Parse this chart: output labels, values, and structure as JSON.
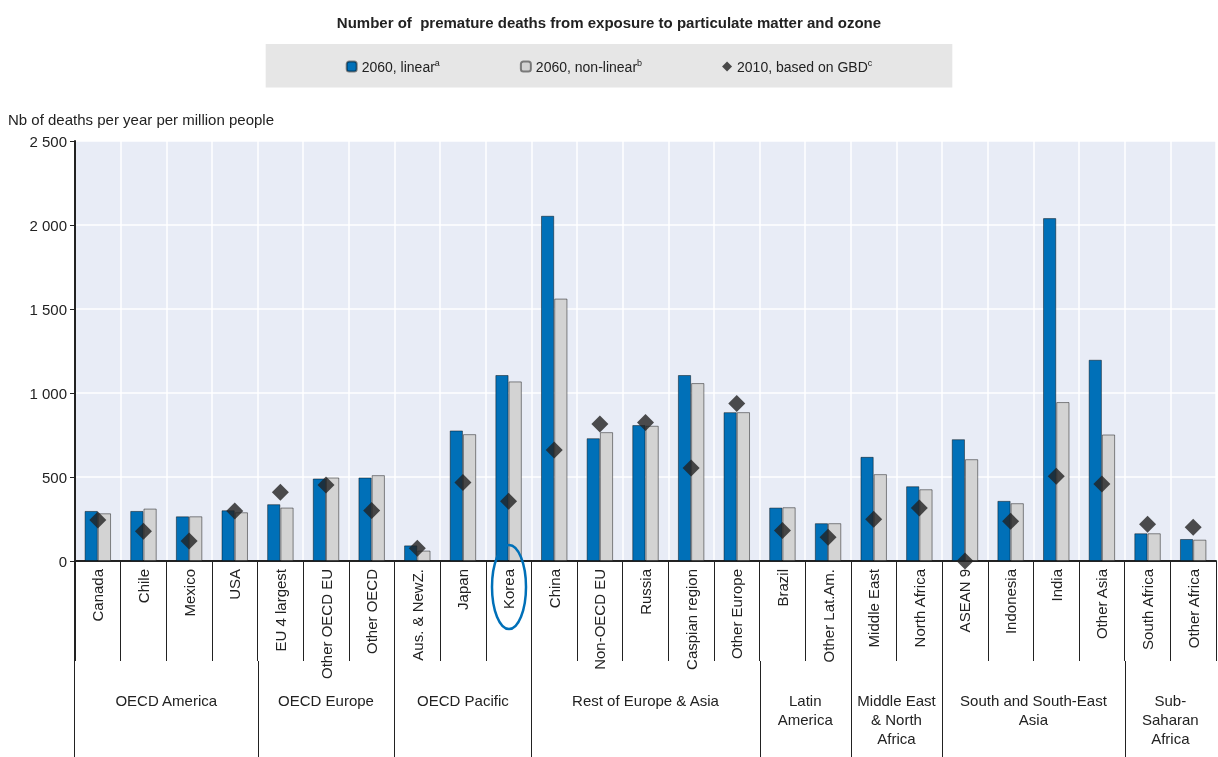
{
  "chart_data": {
    "type": "bar",
    "title": "Number of  premature deaths from exposure to particulate matter and ozone",
    "ylabel": "Nb of deaths per year per million people",
    "categories": [
      "Canada",
      "Chile",
      "Mexico",
      "USA",
      "EU 4 largest",
      "Other OECD EU",
      "Other OECD",
      "Aus. & NewZ.",
      "Japan",
      "Korea",
      "China",
      "Non-OECD EU",
      "Russia",
      "Caspian region",
      "Other Europe",
      "Brazil",
      "Other Lat.Am.",
      "Middle East",
      "North Africa",
      "ASEAN 9",
      "Indonesia",
      "India",
      "Other Asia",
      "South Africa",
      "Other Africa"
    ],
    "series": [
      {
        "name": "2060, linear$^{a}$",
        "color": "#0070b8",
        "values": [
          298,
          298,
          266,
          302,
          338,
          491,
          497,
          93,
          777,
          1107,
          2055,
          731,
          809,
          1107,
          886,
          318,
          225,
          620,
          445,
          725,
          358,
          2041,
          1198,
          165,
          131
        ]
      },
      {
        "name": "2060, non-linear$^{b}$",
        "color": "#d3d3d3",
        "values": [
          284,
          312,
          266,
          290,
          318,
          497,
          511,
          62,
          755,
          1069,
          1562,
          767,
          805,
          1059,
          886,
          320,
          225,
          517,
          427,
          606,
          344,
          946,
          753,
          165,
          127
        ]
      },
      {
        "name": "2010, based on GBD$^{c}$",
        "type": "scatter",
        "color": "#222222",
        "x": [
          "Canada",
          "Chile",
          "Mexico",
          "USA",
          "EU 4 largest",
          "Other OECD EU",
          "Other OECD",
          "Aus. & NewZ.",
          "Japan",
          "Korea",
          "China",
          "Non-OECD EU",
          "Russia",
          "Caspian region",
          "Other Europe",
          "Brazil",
          "Other Lat.Am.",
          "Middle East",
          "North Africa",
          "ASEAN 9",
          "Indonesia",
          "India",
          "Other Asia",
          "South Africa",
          "Other Africa"
        ],
        "values": [
          244,
          177,
          119,
          298,
          409,
          453,
          300,
          76,
          467,
          356,
          660,
          815,
          825,
          554,
          938,
          181,
          141,
          248,
          316,
          0,
          236,
          505,
          459,
          219,
          201
        ]
      }
    ],
    "ylim": [
      0,
      2500
    ],
    "yticks": [
      0,
      {
        "value": 500,
        "label": "500"
      },
      {
        "value": 1000,
        "label": "1 000"
      },
      {
        "value": 1500,
        "label": "1 500"
      },
      {
        "value": 2000,
        "label": "2 000"
      },
      {
        "value": 2500,
        "label": "2 500"
      }
    ],
    "grid": true,
    "legend": "top",
    "marker": "diamond",
    "annotations": [
      "OECD America",
      "OECD Europe",
      "OECD Pacific",
      "Rest of Europe & Asia",
      "Latin America",
      "Middle East & North Africa",
      "South and South-East Asia",
      "Sub-Saharan Africa"
    ]
  }
}
